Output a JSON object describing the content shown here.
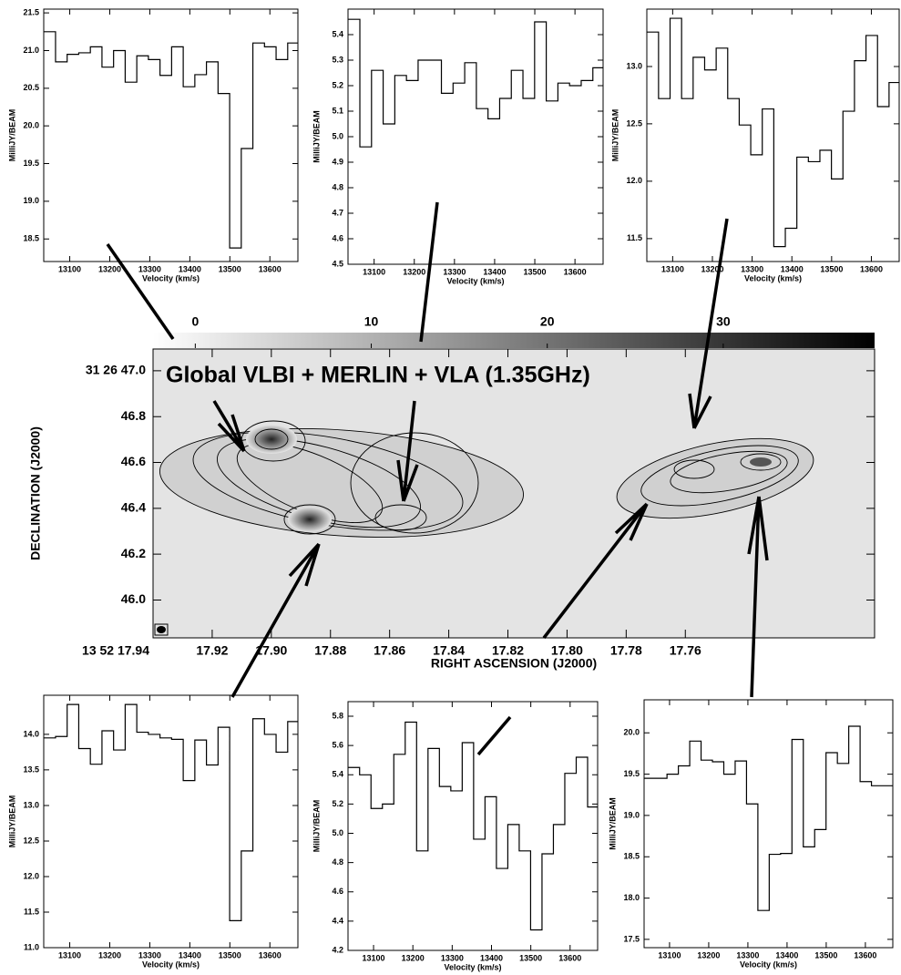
{
  "chart_data": [
    {
      "type": "step",
      "xlabel": "Velocity (km/s)",
      "ylabel": "MilliJY/BEAM",
      "x": [
        13050,
        13079,
        13108,
        13137,
        13166,
        13195,
        13224,
        13253,
        13282,
        13311,
        13340,
        13369,
        13398,
        13427,
        13456,
        13485,
        13514,
        13543,
        13572,
        13601,
        13630,
        13659
      ],
      "values": [
        21.25,
        20.85,
        20.95,
        20.97,
        21.05,
        20.78,
        21.0,
        20.58,
        20.93,
        20.88,
        20.67,
        21.05,
        20.52,
        20.68,
        20.85,
        20.43,
        18.38,
        19.7,
        21.1,
        21.05,
        20.88,
        21.1
      ],
      "color": "#000000",
      "xlim": [
        13035,
        13670
      ],
      "ylim": [
        18.2,
        21.55
      ],
      "xticks": [
        13100,
        13200,
        13300,
        13400,
        13500,
        13600
      ],
      "yticks": [
        18.5,
        {
          "value": 19.0,
          "label": "19.0"
        },
        19.5,
        {
          "value": 20.0,
          "label": "20.0"
        },
        20.5,
        {
          "value": 21.0,
          "label": "21.0"
        },
        21.5
      ]
    },
    {
      "type": "step",
      "xlabel": "Velocity (km/s)",
      "ylabel": "MilliJY/BEAM",
      "x": [
        13050,
        13079,
        13108,
        13137,
        13166,
        13195,
        13224,
        13253,
        13282,
        13311,
        13340,
        13369,
        13398,
        13427,
        13456,
        13485,
        13514,
        13543,
        13572,
        13601,
        13630,
        13659
      ],
      "values": [
        5.46,
        4.96,
        5.26,
        5.05,
        5.24,
        5.22,
        5.3,
        5.3,
        5.17,
        5.21,
        5.29,
        5.11,
        5.07,
        5.15,
        5.26,
        5.15,
        5.45,
        5.14,
        5.21,
        5.2,
        5.22,
        5.27
      ],
      "color": "#000000",
      "xlim": [
        13035,
        13670
      ],
      "ylim": [
        4.5,
        5.5
      ],
      "xticks": [
        13100,
        13200,
        13300,
        13400,
        13500,
        13600
      ],
      "yticks": [
        4.5,
        4.6,
        4.7,
        4.8,
        4.9,
        {
          "value": 5.0,
          "label": "5.0"
        },
        5.1,
        5.2,
        5.3,
        5.4
      ]
    },
    {
      "type": "step",
      "xlabel": "Velocity (km/s)",
      "ylabel": "MilliJY/BEAM",
      "x": [
        13050,
        13079,
        13108,
        13137,
        13166,
        13195,
        13224,
        13253,
        13282,
        13311,
        13340,
        13369,
        13398,
        13427,
        13456,
        13485,
        13514,
        13543,
        13572,
        13601,
        13630,
        13659
      ],
      "values": [
        13.3,
        12.72,
        13.42,
        12.72,
        13.08,
        12.97,
        13.16,
        12.72,
        12.49,
        12.23,
        12.63,
        11.43,
        11.59,
        12.21,
        12.17,
        12.27,
        12.02,
        12.61,
        13.05,
        13.27,
        12.65,
        12.86
      ],
      "color": "#000000",
      "xlim": [
        13035,
        13670
      ],
      "ylim": [
        11.3,
        13.5
      ],
      "xticks": [
        13100,
        13200,
        13300,
        13400,
        13500,
        13600
      ],
      "yticks": [
        11.5,
        {
          "value": 12.0,
          "label": "12.0"
        },
        12.5,
        {
          "value": 13.0,
          "label": "13.0"
        }
      ]
    },
    {
      "type": "step",
      "xlabel": "Velocity (km/s)",
      "ylabel": "MilliJY/BEAM",
      "x": [
        13050,
        13079,
        13108,
        13137,
        13166,
        13195,
        13224,
        13253,
        13282,
        13311,
        13340,
        13369,
        13398,
        13427,
        13456,
        13485,
        13514,
        13543,
        13572,
        13601,
        13630,
        13659
      ],
      "values": [
        13.95,
        13.97,
        14.42,
        13.8,
        13.58,
        14.05,
        13.78,
        14.42,
        14.03,
        14.0,
        13.95,
        13.93,
        13.35,
        13.92,
        13.57,
        14.1,
        11.38,
        12.36,
        14.22,
        14.0,
        13.75,
        14.18
      ],
      "color": "#000000",
      "xlim": [
        13035,
        13670
      ],
      "ylim": [
        11.0,
        14.55
      ],
      "xticks": [
        13100,
        13200,
        13300,
        13400,
        13500,
        13600
      ],
      "yticks": [
        {
          "value": 11.0,
          "label": "11.0"
        },
        11.5,
        {
          "value": 12.0,
          "label": "12.0"
        },
        12.5,
        {
          "value": 13.0,
          "label": "13.0"
        },
        13.5,
        {
          "value": 14.0,
          "label": "14.0"
        }
      ]
    },
    {
      "type": "step",
      "xlabel": "Velocity (km/s)",
      "ylabel": "MilliJY/BEAM",
      "x": [
        13050,
        13079,
        13108,
        13137,
        13166,
        13195,
        13224,
        13253,
        13282,
        13311,
        13340,
        13369,
        13398,
        13427,
        13456,
        13485,
        13514,
        13543,
        13572,
        13601,
        13630,
        13659
      ],
      "values": [
        5.45,
        5.4,
        5.17,
        5.2,
        5.54,
        5.76,
        4.88,
        5.58,
        5.32,
        5.29,
        5.62,
        4.96,
        5.25,
        4.76,
        5.06,
        4.88,
        4.34,
        4.86,
        5.06,
        5.41,
        5.52,
        5.18
      ],
      "color": "#000000",
      "xlim": [
        13035,
        13670
      ],
      "ylim": [
        4.2,
        5.9
      ],
      "xticks": [
        13100,
        13200,
        13300,
        13400,
        13500,
        13600
      ],
      "yticks": [
        4.2,
        4.4,
        4.6,
        4.8,
        {
          "value": 5.0,
          "label": "5.0"
        },
        5.2,
        5.4,
        5.6,
        5.8
      ]
    },
    {
      "type": "step",
      "xlabel": "Velocity (km/s)",
      "ylabel": "MilliJY/BEAM",
      "x": [
        13050,
        13079,
        13108,
        13137,
        13166,
        13195,
        13224,
        13253,
        13282,
        13311,
        13340,
        13369,
        13398,
        13427,
        13456,
        13485,
        13514,
        13543,
        13572,
        13601,
        13630,
        13659
      ],
      "values": [
        19.45,
        19.45,
        19.5,
        19.6,
        19.9,
        19.67,
        19.65,
        19.5,
        19.66,
        19.14,
        17.85,
        18.53,
        18.54,
        19.92,
        18.62,
        18.83,
        19.76,
        19.63,
        20.08,
        19.41,
        19.36,
        19.36
      ],
      "color": "#000000",
      "xlim": [
        13035,
        13670
      ],
      "ylim": [
        17.4,
        20.4
      ],
      "xticks": [
        13100,
        13200,
        13300,
        13400,
        13500,
        13600
      ],
      "yticks": [
        17.5,
        {
          "value": 18.0,
          "label": "18.0"
        },
        18.5,
        {
          "value": 19.0,
          "label": "19.0"
        },
        19.5,
        {
          "value": 20.0,
          "label": "20.0"
        }
      ]
    },
    {
      "type": "image",
      "title": "Global VLBI + MERLIN + VLA (1.35GHz)",
      "xlabel": "RIGHT ASCENSION (J2000)",
      "ylabel": "DECLINATION (J2000)",
      "xlim": [
        17.94,
        17.696
      ],
      "ylim": [
        45.835,
        47.095
      ],
      "xticks": [
        {
          "value": 17.94,
          "label": "13 52 17.94"
        },
        17.92,
        {
          "value": 17.9,
          "label": "17.90"
        },
        17.88,
        17.86,
        17.84,
        17.82,
        {
          "value": 17.8,
          "label": "17.80"
        },
        17.78,
        17.76
      ],
      "yticks": [
        {
          "value": 46.0,
          "label": "46.0"
        },
        46.2,
        46.4,
        46.6,
        46.8,
        {
          "value": 47.0,
          "label": "31 26 47.0"
        }
      ],
      "colorbar_lim": [
        -2.4,
        38.6
      ],
      "colorbar_ticks": [
        0,
        10,
        20,
        30
      ]
    }
  ]
}
